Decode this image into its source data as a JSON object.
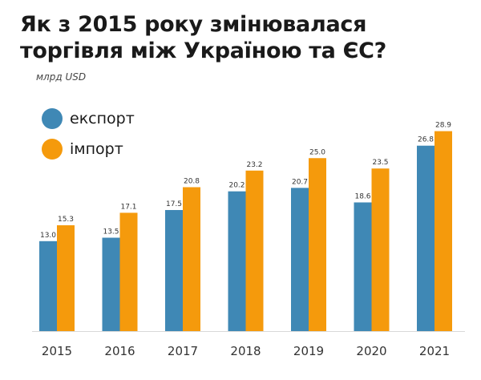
{
  "title_lines": [
    "Як з 2015 року змінювалася",
    "торгівля між Україною та ЄС?"
  ],
  "subtitle": "млрд USD",
  "legend": [
    {
      "label": "експорт",
      "color": "#3f88b5"
    },
    {
      "label": "імпорт",
      "color": "#f59a0c"
    }
  ],
  "chart_data": {
    "type": "bar",
    "title": "Як з 2015 року змінювалася торгівля між Україною та ЄС?",
    "subtitle": "млрд USD",
    "categories": [
      "2015",
      "2016",
      "2017",
      "2018",
      "2019",
      "2020",
      "2021"
    ],
    "series": [
      {
        "name": "експорт",
        "color": "#3f88b5",
        "values": [
          13.0,
          13.5,
          17.5,
          20.2,
          20.7,
          18.6,
          26.8
        ]
      },
      {
        "name": "імпорт",
        "color": "#f59a0c",
        "values": [
          15.3,
          17.1,
          20.8,
          23.2,
          25.0,
          23.5,
          28.9
        ]
      }
    ],
    "value_labels": true,
    "ylim": [
      0,
      29
    ],
    "grid": false,
    "legend_position": "top-left",
    "xlabel": "",
    "ylabel": ""
  }
}
